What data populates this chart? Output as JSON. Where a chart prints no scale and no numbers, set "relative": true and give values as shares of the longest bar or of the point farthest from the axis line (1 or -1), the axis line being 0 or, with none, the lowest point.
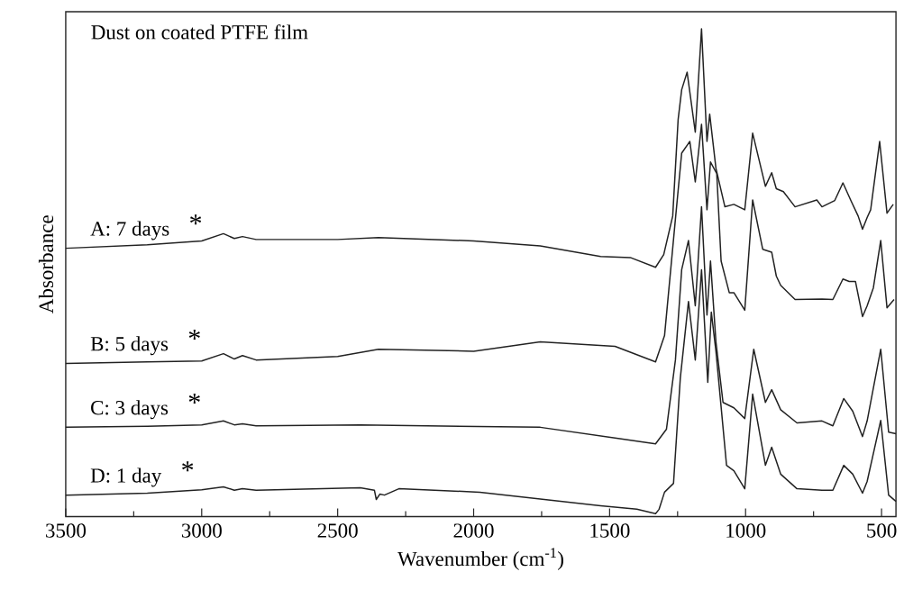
{
  "chart_data": {
    "type": "line",
    "title": "Dust on coated PTFE film",
    "xlabel": "Wavenumber (cm$^{-1}$)",
    "ylabel": "Absorbance",
    "relative": true,
    "xlim": [
      3500,
      447
    ],
    "xticks": [
      3500,
      {
        "value": 3250,
        "label": null
      },
      3000,
      {
        "value": 2750,
        "label": null
      },
      2500,
      {
        "value": 2250,
        "label": null
      },
      2000,
      {
        "value": 1750,
        "label": null
      },
      1500,
      {
        "value": 1250,
        "label": null
      },
      1000,
      {
        "value": 750,
        "label": null
      },
      500
    ],
    "legend": false,
    "marker": "none",
    "line_style": "solid",
    "grid": false,
    "series": [
      {
        "name": "A: 7 days",
        "color": "#222222",
        "x": [
          3500,
          3200,
          3000,
          2920,
          2880,
          2850,
          2800,
          2500,
          2350,
          2000,
          1755,
          1533,
          1424,
          1331,
          1301,
          1268,
          1248,
          1235,
          1215,
          1185,
          1162,
          1142,
          1132,
          1109,
          1076,
          1043,
          1003,
          974,
          927,
          904,
          887,
          861,
          818,
          738,
          719,
          672,
          642,
          613,
          586,
          570,
          553,
          540,
          507,
          480,
          457
        ],
        "values": [
          0.55,
          0.557,
          0.565,
          0.58,
          0.57,
          0.574,
          0.568,
          0.568,
          0.572,
          0.565,
          0.555,
          0.533,
          0.531,
          0.511,
          0.537,
          0.616,
          0.814,
          0.875,
          0.911,
          0.788,
          1.0,
          0.769,
          0.825,
          0.714,
          0.635,
          0.64,
          0.629,
          0.786,
          0.677,
          0.705,
          0.672,
          0.666,
          0.635,
          0.649,
          0.635,
          0.648,
          0.684,
          0.648,
          0.616,
          0.589,
          0.613,
          0.629,
          0.769,
          0.622,
          0.64
        ]
      },
      {
        "name": "B: 5 days",
        "color": "#222222",
        "x": [
          3500,
          3200,
          3000,
          2920,
          2880,
          2850,
          2800,
          2500,
          2350,
          2000,
          1755,
          1480,
          1331,
          1298,
          1260,
          1235,
          1205,
          1185,
          1162,
          1142,
          1129,
          1106,
          1090,
          1060,
          1043,
          1003,
          974,
          937,
          904,
          887,
          871,
          818,
          719,
          679,
          642,
          619,
          596,
          570,
          553,
          530,
          503,
          480,
          454
        ],
        "values": [
          0.314,
          0.317,
          0.319,
          0.334,
          0.323,
          0.33,
          0.321,
          0.328,
          0.343,
          0.339,
          0.358,
          0.349,
          0.317,
          0.371,
          0.598,
          0.745,
          0.769,
          0.686,
          0.804,
          0.629,
          0.727,
          0.703,
          0.524,
          0.459,
          0.459,
          0.423,
          0.649,
          0.548,
          0.542,
          0.493,
          0.474,
          0.445,
          0.446,
          0.445,
          0.487,
          0.482,
          0.482,
          0.41,
          0.432,
          0.469,
          0.566,
          0.428,
          0.445
        ]
      },
      {
        "name": "C: 3 days",
        "color": "#222222",
        "x": [
          3500,
          3200,
          3000,
          2920,
          2880,
          2850,
          2800,
          2417,
          1755,
          1480,
          1331,
          1291,
          1258,
          1235,
          1210,
          1185,
          1162,
          1142,
          1129,
          1109,
          1083,
          1043,
          1003,
          970,
          927,
          904,
          871,
          811,
          719,
          679,
          639,
          606,
          570,
          553,
          503,
          474,
          447
        ],
        "values": [
          0.183,
          0.185,
          0.188,
          0.196,
          0.188,
          0.19,
          0.186,
          0.188,
          0.183,
          0.161,
          0.149,
          0.179,
          0.321,
          0.506,
          0.566,
          0.432,
          0.635,
          0.413,
          0.524,
          0.358,
          0.234,
          0.223,
          0.201,
          0.343,
          0.234,
          0.26,
          0.219,
          0.192,
          0.196,
          0.186,
          0.242,
          0.216,
          0.164,
          0.196,
          0.343,
          0.173,
          0.17
        ]
      },
      {
        "name": "D: 1 day",
        "color": "#222222",
        "x": [
          3500,
          3200,
          3000,
          2920,
          2880,
          2850,
          2800,
          2417,
          2365,
          2358,
          2345,
          2328,
          2275,
          1977,
          1533,
          1400,
          1331,
          1318,
          1298,
          1265,
          1240,
          1210,
          1185,
          1162,
          1139,
          1126,
          1109,
          1070,
          1043,
          1003,
          974,
          927,
          904,
          871,
          811,
          719,
          679,
          639,
          606,
          570,
          553,
          503,
          474,
          447
        ],
        "values": [
          0.044,
          0.048,
          0.055,
          0.061,
          0.054,
          0.057,
          0.054,
          0.059,
          0.054,
          0.035,
          0.046,
          0.044,
          0.057,
          0.05,
          0.022,
          0.015,
          0.006,
          0.015,
          0.05,
          0.068,
          0.284,
          0.441,
          0.321,
          0.506,
          0.275,
          0.419,
          0.339,
          0.105,
          0.094,
          0.057,
          0.251,
          0.105,
          0.142,
          0.087,
          0.057,
          0.054,
          0.054,
          0.105,
          0.087,
          0.048,
          0.072,
          0.197,
          0.044,
          0.031
        ]
      }
    ],
    "annotations": [
      "*",
      "*",
      "*",
      "*"
    ]
  }
}
